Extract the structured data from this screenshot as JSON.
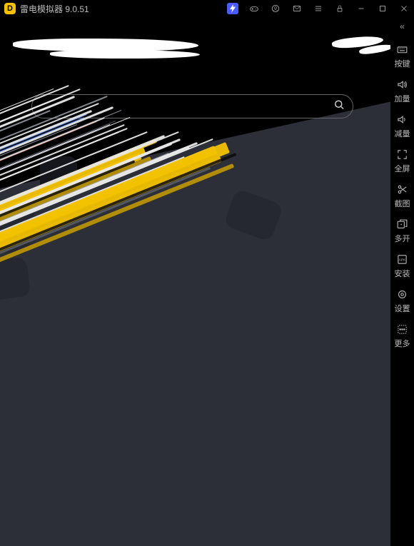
{
  "title": "雷电模拟器 9.0.51",
  "logo_letter": "D",
  "sidebar": {
    "collapse_glyph": "«",
    "items": [
      {
        "label": "按键",
        "icon": "keyboard"
      },
      {
        "label": "加量",
        "icon": "volume-up"
      },
      {
        "label": "减量",
        "icon": "volume-down"
      },
      {
        "label": "全屏",
        "icon": "fullscreen"
      },
      {
        "label": "截图",
        "icon": "scissors"
      },
      {
        "label": "多开",
        "icon": "multi"
      },
      {
        "label": "安装",
        "icon": "apk"
      },
      {
        "label": "设置",
        "icon": "gear"
      },
      {
        "label": "更多",
        "icon": "more"
      }
    ]
  },
  "streak_colors": {
    "white": "#e8e8e8",
    "gray": "#9aa0a8",
    "darkgray": "#5a5f68",
    "yellow": "#f2c200",
    "yellow_dark": "#c99e00",
    "blue": "#3b6fd6",
    "blue_light": "#6aa0ff",
    "orange": "#e07050",
    "black": "#0a0a0a"
  },
  "colors": {
    "bg": "#2c2f37",
    "panel": "#000000",
    "accent": "#4a5cff",
    "text": "#bbbbbb"
  }
}
